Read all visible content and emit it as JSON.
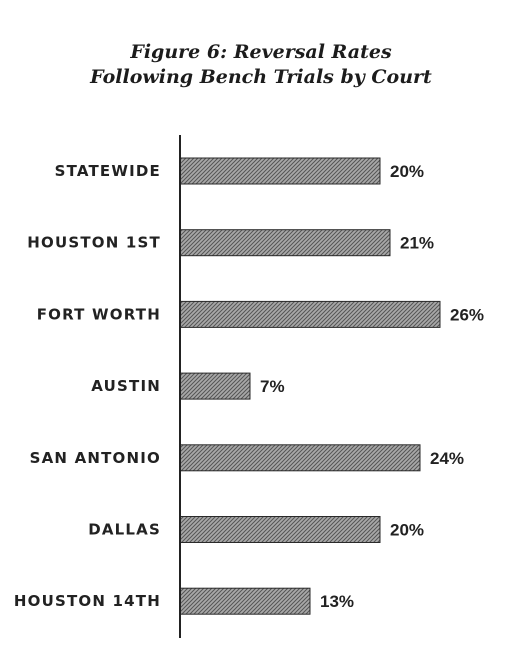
{
  "chart_data": {
    "type": "bar",
    "orientation": "horizontal",
    "title_lines": [
      "Figure 6: Reversal Rates",
      "Following Bench Trials by Court"
    ],
    "categories": [
      "STATEWIDE",
      "HOUSTON 1ST",
      "FORT WORTH",
      "AUSTIN",
      "SAN ANTONIO",
      "DALLAS",
      "HOUSTON 14TH"
    ],
    "values": [
      20,
      21,
      26,
      7,
      24,
      20,
      13
    ],
    "value_labels": [
      "20%",
      "21%",
      "26%",
      "7%",
      "24%",
      "20%",
      "13%"
    ],
    "unit": "%",
    "xlim": [
      0,
      30
    ],
    "grid": false,
    "legend": "none",
    "colors": {
      "bar_fill": "#9a9a9a",
      "bar_hatch": "#555555",
      "bar_stroke": "#2a2a2a",
      "axis": "#222222",
      "text": "#222222"
    }
  }
}
